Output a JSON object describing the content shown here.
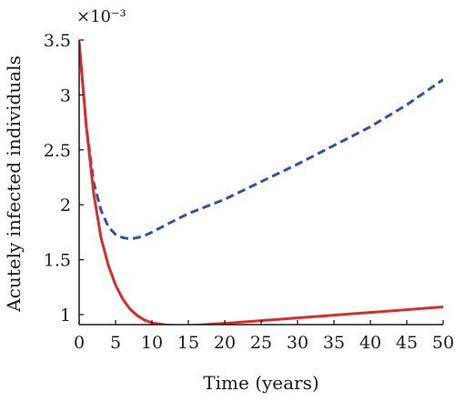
{
  "chart_data": {
    "type": "line",
    "title": "",
    "xlabel": "Time (years)",
    "ylabel": "Acutely infected individuals",
    "y_multiplier_label": "×10⁻³",
    "xlim": [
      0,
      50
    ],
    "ylim": [
      0.9,
      3.5
    ],
    "x_ticks": [
      0,
      5,
      10,
      15,
      20,
      25,
      30,
      35,
      40,
      45,
      50
    ],
    "y_ticks": [
      1,
      1.5,
      2,
      2.5,
      3,
      3.5
    ],
    "x_tick_labels": [
      "0",
      "5",
      "10",
      "15",
      "20",
      "25",
      "30",
      "35",
      "40",
      "45",
      "50"
    ],
    "y_tick_labels": [
      "1",
      "1.5",
      "2",
      "2.5",
      "3",
      "3.5"
    ],
    "grid": false,
    "series": [
      {
        "color": "#2f52a8",
        "style": "dashed",
        "x": [
          0,
          1,
          2,
          3,
          4,
          5,
          6,
          7,
          8,
          9,
          10,
          12,
          15,
          20,
          25,
          30,
          35,
          40,
          45,
          50
        ],
        "y": [
          3.48,
          2.7,
          2.2,
          1.95,
          1.8,
          1.73,
          1.7,
          1.69,
          1.7,
          1.72,
          1.75,
          1.82,
          1.92,
          2.05,
          2.21,
          2.37,
          2.54,
          2.71,
          2.91,
          3.14
        ]
      },
      {
        "color": "#e02a2a",
        "style": "solid",
        "x": [
          0,
          1,
          2,
          3,
          4,
          5,
          6,
          7,
          8,
          9,
          10,
          12,
          14,
          15,
          20,
          25,
          30,
          35,
          40,
          45,
          50
        ],
        "y": [
          3.48,
          2.7,
          2.1,
          1.7,
          1.45,
          1.27,
          1.14,
          1.05,
          0.99,
          0.95,
          0.925,
          0.905,
          0.9,
          0.9,
          0.92,
          0.945,
          0.97,
          0.995,
          1.02,
          1.045,
          1.07
        ]
      }
    ]
  }
}
